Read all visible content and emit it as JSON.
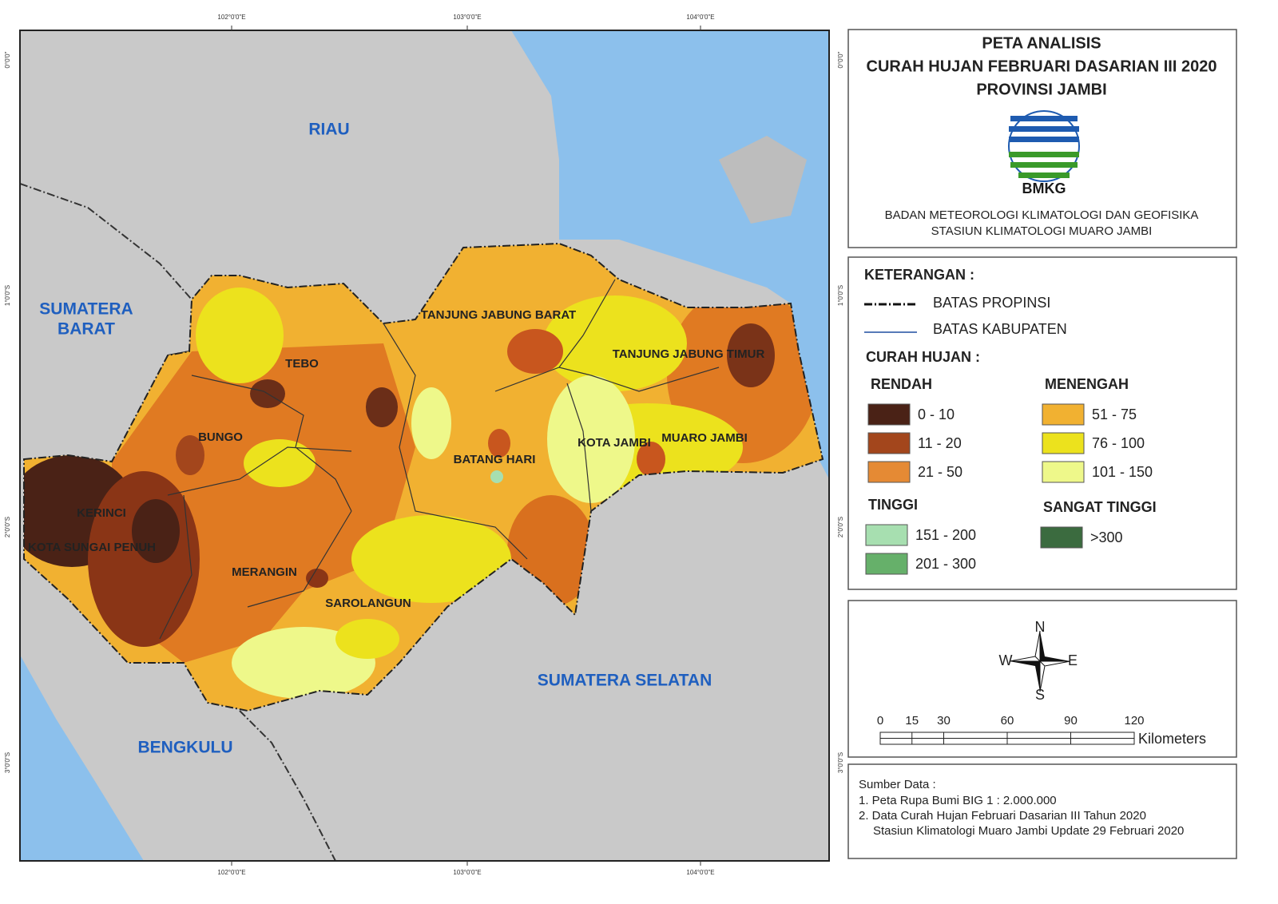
{
  "map": {
    "x_ticks": [
      "102°0'0\"E",
      "103°0'0\"E",
      "104°0'0\"E"
    ],
    "y_ticks": [
      "0°0'0\"",
      "1°0'0\"S",
      "2°0'0\"S",
      "3°0'0\"S"
    ],
    "provinces": [
      [
        "RIAU"
      ],
      [
        "SUMATERA",
        "BARAT"
      ],
      [
        "SUMATERA SELATAN"
      ],
      [
        "BENGKULU"
      ]
    ],
    "districts": [
      "TEBO",
      "BUNGO",
      "KERINCI",
      "KOTA SUNGAI PENUH",
      "MERANGIN",
      "SAROLANGUN",
      "BATANG HARI",
      "TANJUNG JABUNG BARAT",
      "TANJUNG JABUNG TIMUR",
      "KOTA JAMBI",
      "MUARO JAMBI"
    ]
  },
  "header": {
    "title": [
      "PETA ANALISIS",
      "CURAH HUJAN FEBRUARI DASARIAN III 2020",
      "PROVINSI JAMBI"
    ],
    "logo": "BMKG",
    "agency": [
      "BADAN METEOROLOGI KLIMATOLOGI DAN GEOFISIKA",
      "STASIUN KLIMATOLOGI MUARO JAMBI"
    ]
  },
  "legend": {
    "heading": "KETERANGAN :",
    "lines": [
      "BATAS PROPINSI",
      "BATAS KABUPATEN"
    ],
    "rain_heading": "CURAH HUJAN :",
    "groups": [
      {
        "name": "RENDAH",
        "items": [
          {
            "label": "0 - 10",
            "color": "#4a2216"
          },
          {
            "label": "11 - 20",
            "color": "#a3461c"
          },
          {
            "label": "21 - 50",
            "color": "#e58a34"
          }
        ]
      },
      {
        "name": "MENENGAH",
        "items": [
          {
            "label": "51 - 75",
            "color": "#f1b131"
          },
          {
            "label": "76 - 100",
            "color": "#ece21d"
          },
          {
            "label": "101 - 150",
            "color": "#eef88a"
          }
        ]
      },
      {
        "name": "TINGGI",
        "items": [
          {
            "label": "151 - 200",
            "color": "#a7dfb0"
          },
          {
            "label": "201 - 300",
            "color": "#66b06a"
          }
        ]
      },
      {
        "name": "SANGAT TINGGI",
        "items": [
          {
            "label": ">300",
            "color": "#3b6b3f"
          }
        ]
      }
    ]
  },
  "compass": {
    "n": "N",
    "e": "E",
    "s": "S",
    "w": "W"
  },
  "scale": {
    "ticks": [
      0,
      15,
      30,
      60,
      90,
      120
    ],
    "unit": "Kilometers"
  },
  "sources": [
    "Sumber Data :",
    "1. Peta Rupa Bumi BIG 1 : 2.000.000",
    "2. Data Curah Hujan Februari Dasarian III Tahun 2020",
    "Stasiun Klimatologi Muaro Jambi Update 29 Februari 2020"
  ]
}
